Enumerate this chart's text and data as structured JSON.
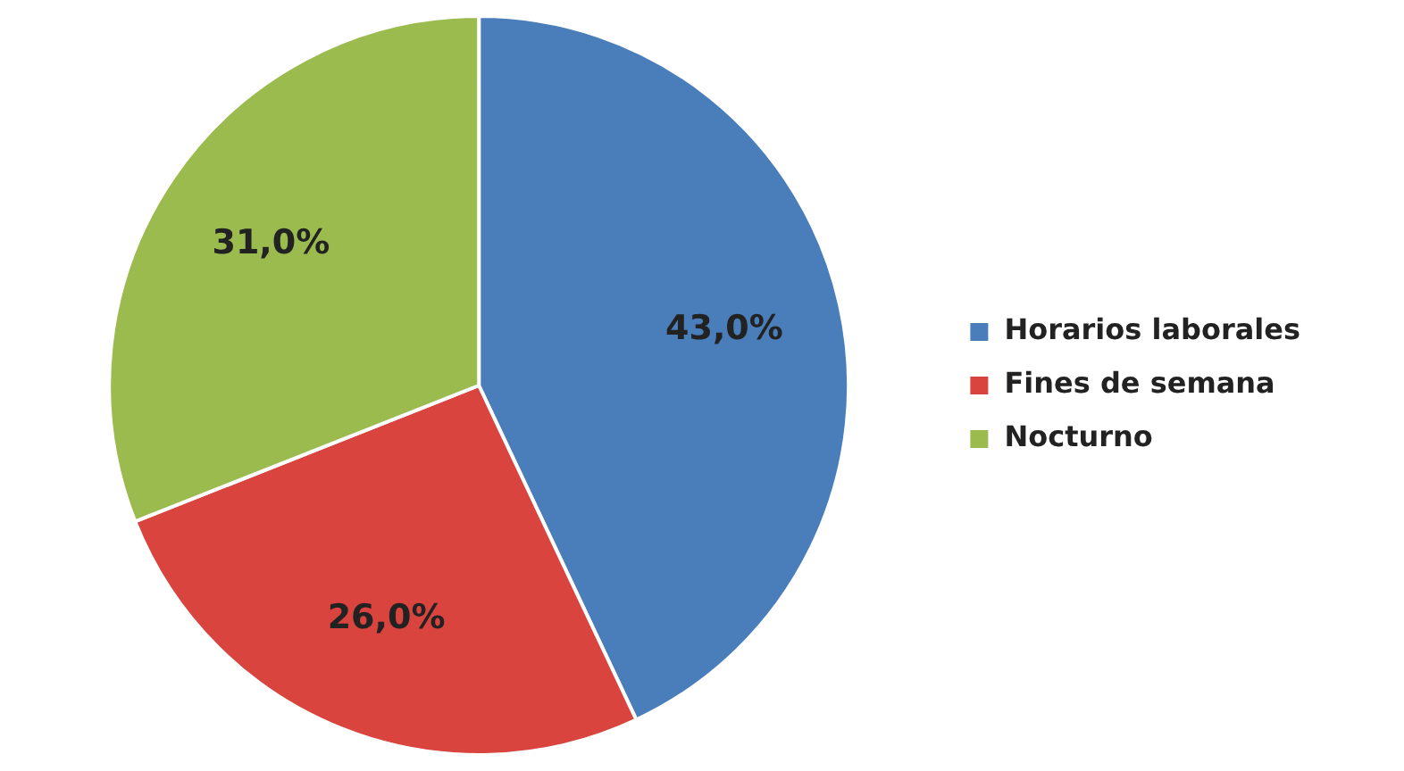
{
  "chart_data": {
    "type": "pie",
    "categories": [
      "Horarios laborales",
      "Fines de semana",
      "Nocturno"
    ],
    "values": [
      43,
      26,
      31
    ],
    "colors": [
      "#4a7ebb",
      "#d9443f",
      "#9bbb4f"
    ],
    "value_labels": [
      "43,0%",
      "26,0%",
      "31,0%"
    ],
    "legend": "right"
  }
}
